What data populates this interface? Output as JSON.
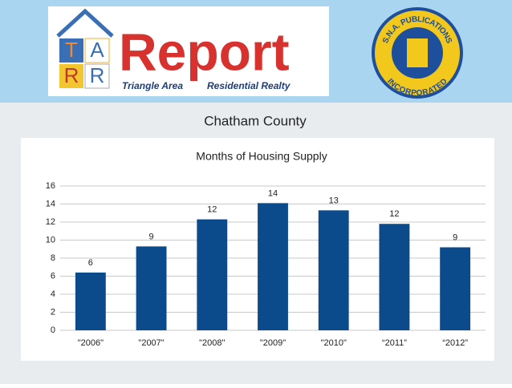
{
  "header": {
    "logo_letters": [
      "T",
      "A",
      "R",
      "R"
    ],
    "logo_word": "Report",
    "logo_tagline_left": "Triangle Area",
    "logo_tagline_right": "Residential Realty",
    "seal_top": "S.N.A. PUBLICATIONS",
    "seal_bottom": "INCORPORATED"
  },
  "slide_title": "Chatham County",
  "chart_data": {
    "type": "bar",
    "title": "Months of Housing Supply",
    "categories": [
      "\"2006\"",
      "\"2007\"",
      "\"2008\"",
      "\"2009\"",
      "\"2010\"",
      "“2011”",
      "“2012”"
    ],
    "values": [
      6.4,
      9.3,
      12.3,
      14.1,
      13.3,
      11.8,
      9.2
    ],
    "value_labels": [
      "6",
      "9",
      "12",
      "14",
      "13",
      "12",
      "9"
    ],
    "color": "#0b4a8b",
    "ylim": [
      0,
      16
    ],
    "yticks": [
      0,
      2,
      4,
      6,
      8,
      10,
      12,
      14,
      16
    ],
    "grid": true
  }
}
